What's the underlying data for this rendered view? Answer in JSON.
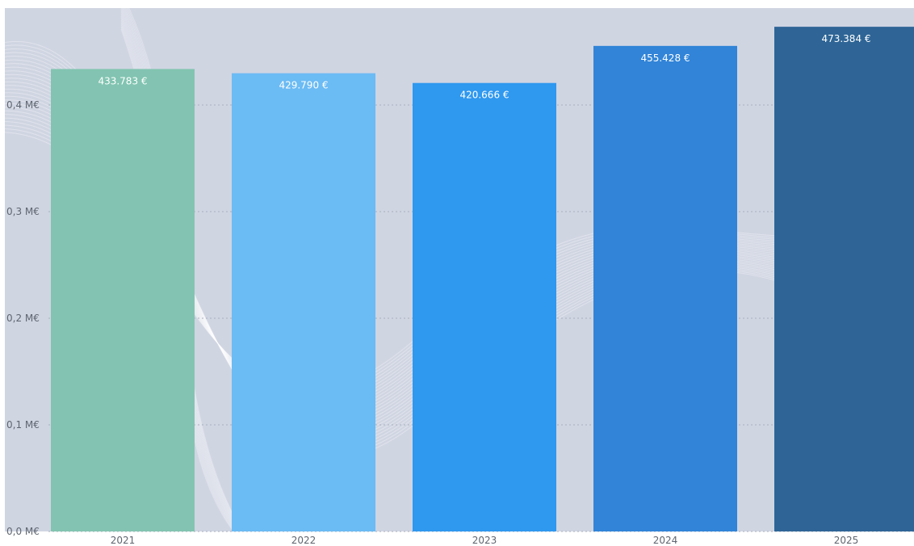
{
  "chart_data": {
    "type": "bar",
    "categories": [
      "2021",
      "2022",
      "2023",
      "2024",
      "2025"
    ],
    "values": [
      433783,
      429790,
      420666,
      455428,
      473384
    ],
    "data_labels": [
      "433.783 €",
      "429.790 €",
      "420.666 €",
      "455.428 €",
      "473.384 €"
    ],
    "bar_colors": [
      "#82c4b1",
      "#6bbbf4",
      "#2f98ef",
      "#3184d8",
      "#2e6596"
    ],
    "yticks": [
      {
        "value": 0,
        "label": "0,0 M€"
      },
      {
        "value": 100000,
        "label": "0,1 M€"
      },
      {
        "value": 200000,
        "label": "0,2 M€"
      },
      {
        "value": 300000,
        "label": "0,3 M€"
      },
      {
        "value": 400000,
        "label": "0,4 M€"
      }
    ],
    "ylim": [
      0,
      490000
    ],
    "grid": true,
    "legend": "none"
  },
  "theme": {
    "plot_background": "#d0d5e2",
    "page_background": "#ffffff",
    "grid_color": "#a9afbd",
    "decor_line_color": "#ffffff"
  }
}
